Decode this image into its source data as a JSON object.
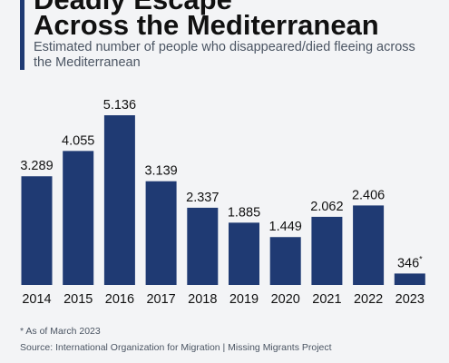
{
  "header": {
    "title_line1": "Deadly Escape",
    "title_line2": "Across the Mediterranean",
    "subtitle": "Estimated number of people who disappeared/died fleeing across the Mediterranean"
  },
  "footer": {
    "note": "* As of March 2023",
    "source": "Source: International Organization for Migration | Missing Migrants Project"
  },
  "colors": {
    "bar": "#1f3a73",
    "accent": "#1f3a73",
    "text": "#111111",
    "muted": "#4b5563",
    "background": "#f3f4f6"
  },
  "chart_data": {
    "type": "bar",
    "title": "Deadly Escape Across the Mediterranean",
    "subtitle": "Estimated number of people who disappeared/died fleeing across the Mediterranean",
    "categories": [
      "2014",
      "2015",
      "2016",
      "2017",
      "2018",
      "2019",
      "2020",
      "2021",
      "2022",
      "2023"
    ],
    "values": [
      3289,
      4055,
      5136,
      3139,
      2337,
      1885,
      1449,
      2062,
      2406,
      346
    ],
    "labels": [
      "3.289",
      "4.055",
      "5.136",
      "3.139",
      "2.337",
      "1.885",
      "1.449",
      "2.062",
      "2.406",
      "346*"
    ],
    "ylim": [
      0,
      5136
    ],
    "xlabel": "",
    "ylabel": "",
    "grid": false,
    "legend": "none",
    "annotations": [
      "* As of March 2023"
    ]
  }
}
